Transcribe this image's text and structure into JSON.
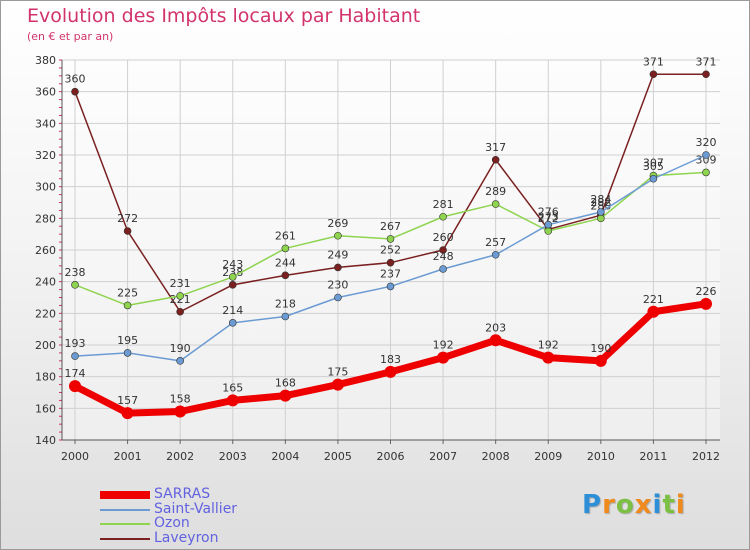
{
  "chart_data": {
    "type": "line",
    "title": "Evolution des Impôts locaux par Habitant",
    "subtitle": "(en € et par an)",
    "xlabel": "",
    "ylabel": "",
    "ylim": [
      140,
      380
    ],
    "y_ticks": [
      "140",
      "160",
      "180",
      "200",
      "220",
      "240",
      "260",
      "280",
      "300",
      "320",
      "340",
      "360",
      "380"
    ],
    "categories": [
      "2000",
      "2001",
      "2002",
      "2003",
      "2004",
      "2005",
      "2006",
      "2007",
      "2008",
      "2009",
      "2010",
      "2011",
      "2012"
    ],
    "series": [
      {
        "name": "SARRAS",
        "color": "#ee0000",
        "values": [
          174,
          157,
          158,
          165,
          168,
          175,
          183,
          192,
          203,
          192,
          190,
          221,
          226
        ]
      },
      {
        "name": "Saint-Vallier",
        "color": "#6b9bd2",
        "values": [
          193,
          195,
          190,
          214,
          218,
          230,
          237,
          248,
          257,
          276,
          284,
          305,
          320
        ]
      },
      {
        "name": "Ozon",
        "color": "#8ed44e",
        "values": [
          238,
          225,
          231,
          243,
          261,
          269,
          267,
          281,
          289,
          272,
          280,
          307,
          309
        ]
      },
      {
        "name": "Laveyron",
        "color": "#7a2020",
        "values": [
          360,
          272,
          221,
          238,
          244,
          249,
          252,
          260,
          317,
          273,
          282,
          371,
          371
        ]
      }
    ]
  },
  "logo": {
    "letters": [
      "P",
      "r",
      "o",
      "x",
      "i",
      "t",
      "i"
    ],
    "colors": [
      "#2d8fd8",
      "#f08a1c",
      "#7bc043",
      "#f08a1c",
      "#2d8fd8",
      "#7bc043",
      "#f08a1c"
    ]
  }
}
